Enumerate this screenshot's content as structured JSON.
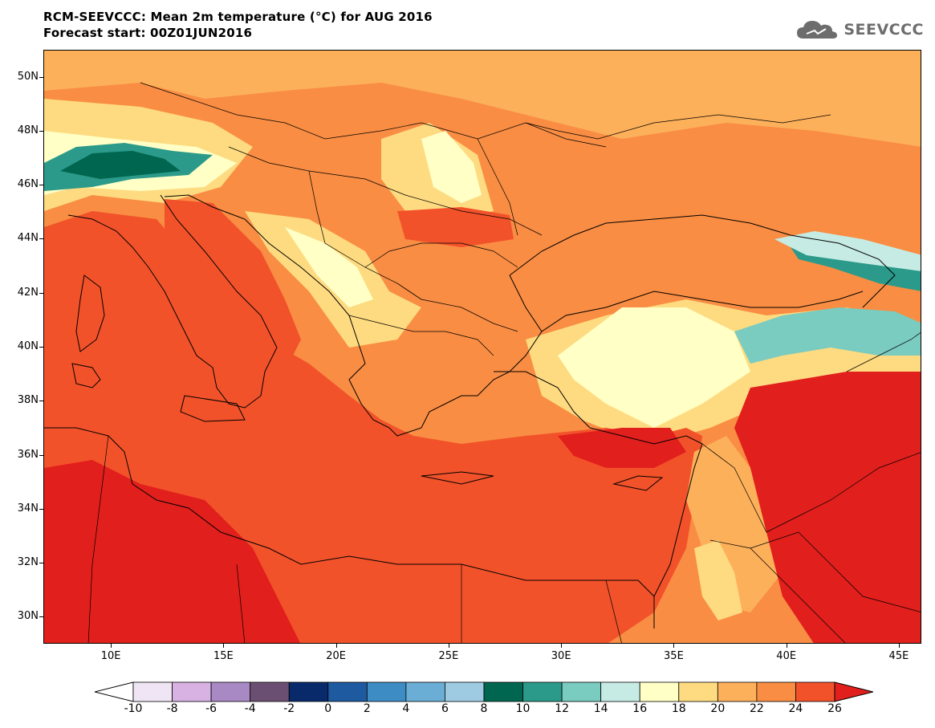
{
  "title": {
    "line1": "RCM-SEEVCCC: Mean 2m temperature (°C) for AUG 2016",
    "line2": "Forecast start: 00Z01JUN2016"
  },
  "logo": {
    "text": "SEEVCCC",
    "icon": "cloud-icon"
  },
  "map": {
    "lon_range": [
      7,
      46
    ],
    "lat_range": [
      29,
      51
    ],
    "lat_labels": [
      "50N",
      "48N",
      "46N",
      "44N",
      "42N",
      "40N",
      "38N",
      "36N",
      "34N",
      "32N",
      "30N"
    ],
    "lon_labels": [
      "10E",
      "15E",
      "20E",
      "25E",
      "30E",
      "35E",
      "40E",
      "45E"
    ]
  },
  "colorbar": {
    "labels": [
      "-10",
      "-8",
      "-6",
      "-4",
      "-2",
      "0",
      "2",
      "4",
      "6",
      "8",
      "10",
      "12",
      "14",
      "16",
      "18",
      "20",
      "22",
      "24",
      "26"
    ],
    "colors": [
      "#ffffff",
      "#efe5f4",
      "#d7b2e3",
      "#a989c4",
      "#6b4f72",
      "#082a6b",
      "#1e5aa0",
      "#3e8cc4",
      "#6aaed6",
      "#9ecbe2",
      "#00664f",
      "#2b9a8a",
      "#7acbc0",
      "#c6ebe4",
      "#ffffc6",
      "#fedb80",
      "#fdb05a",
      "#f98d43",
      "#f2522a",
      "#e11f1c"
    ]
  }
}
